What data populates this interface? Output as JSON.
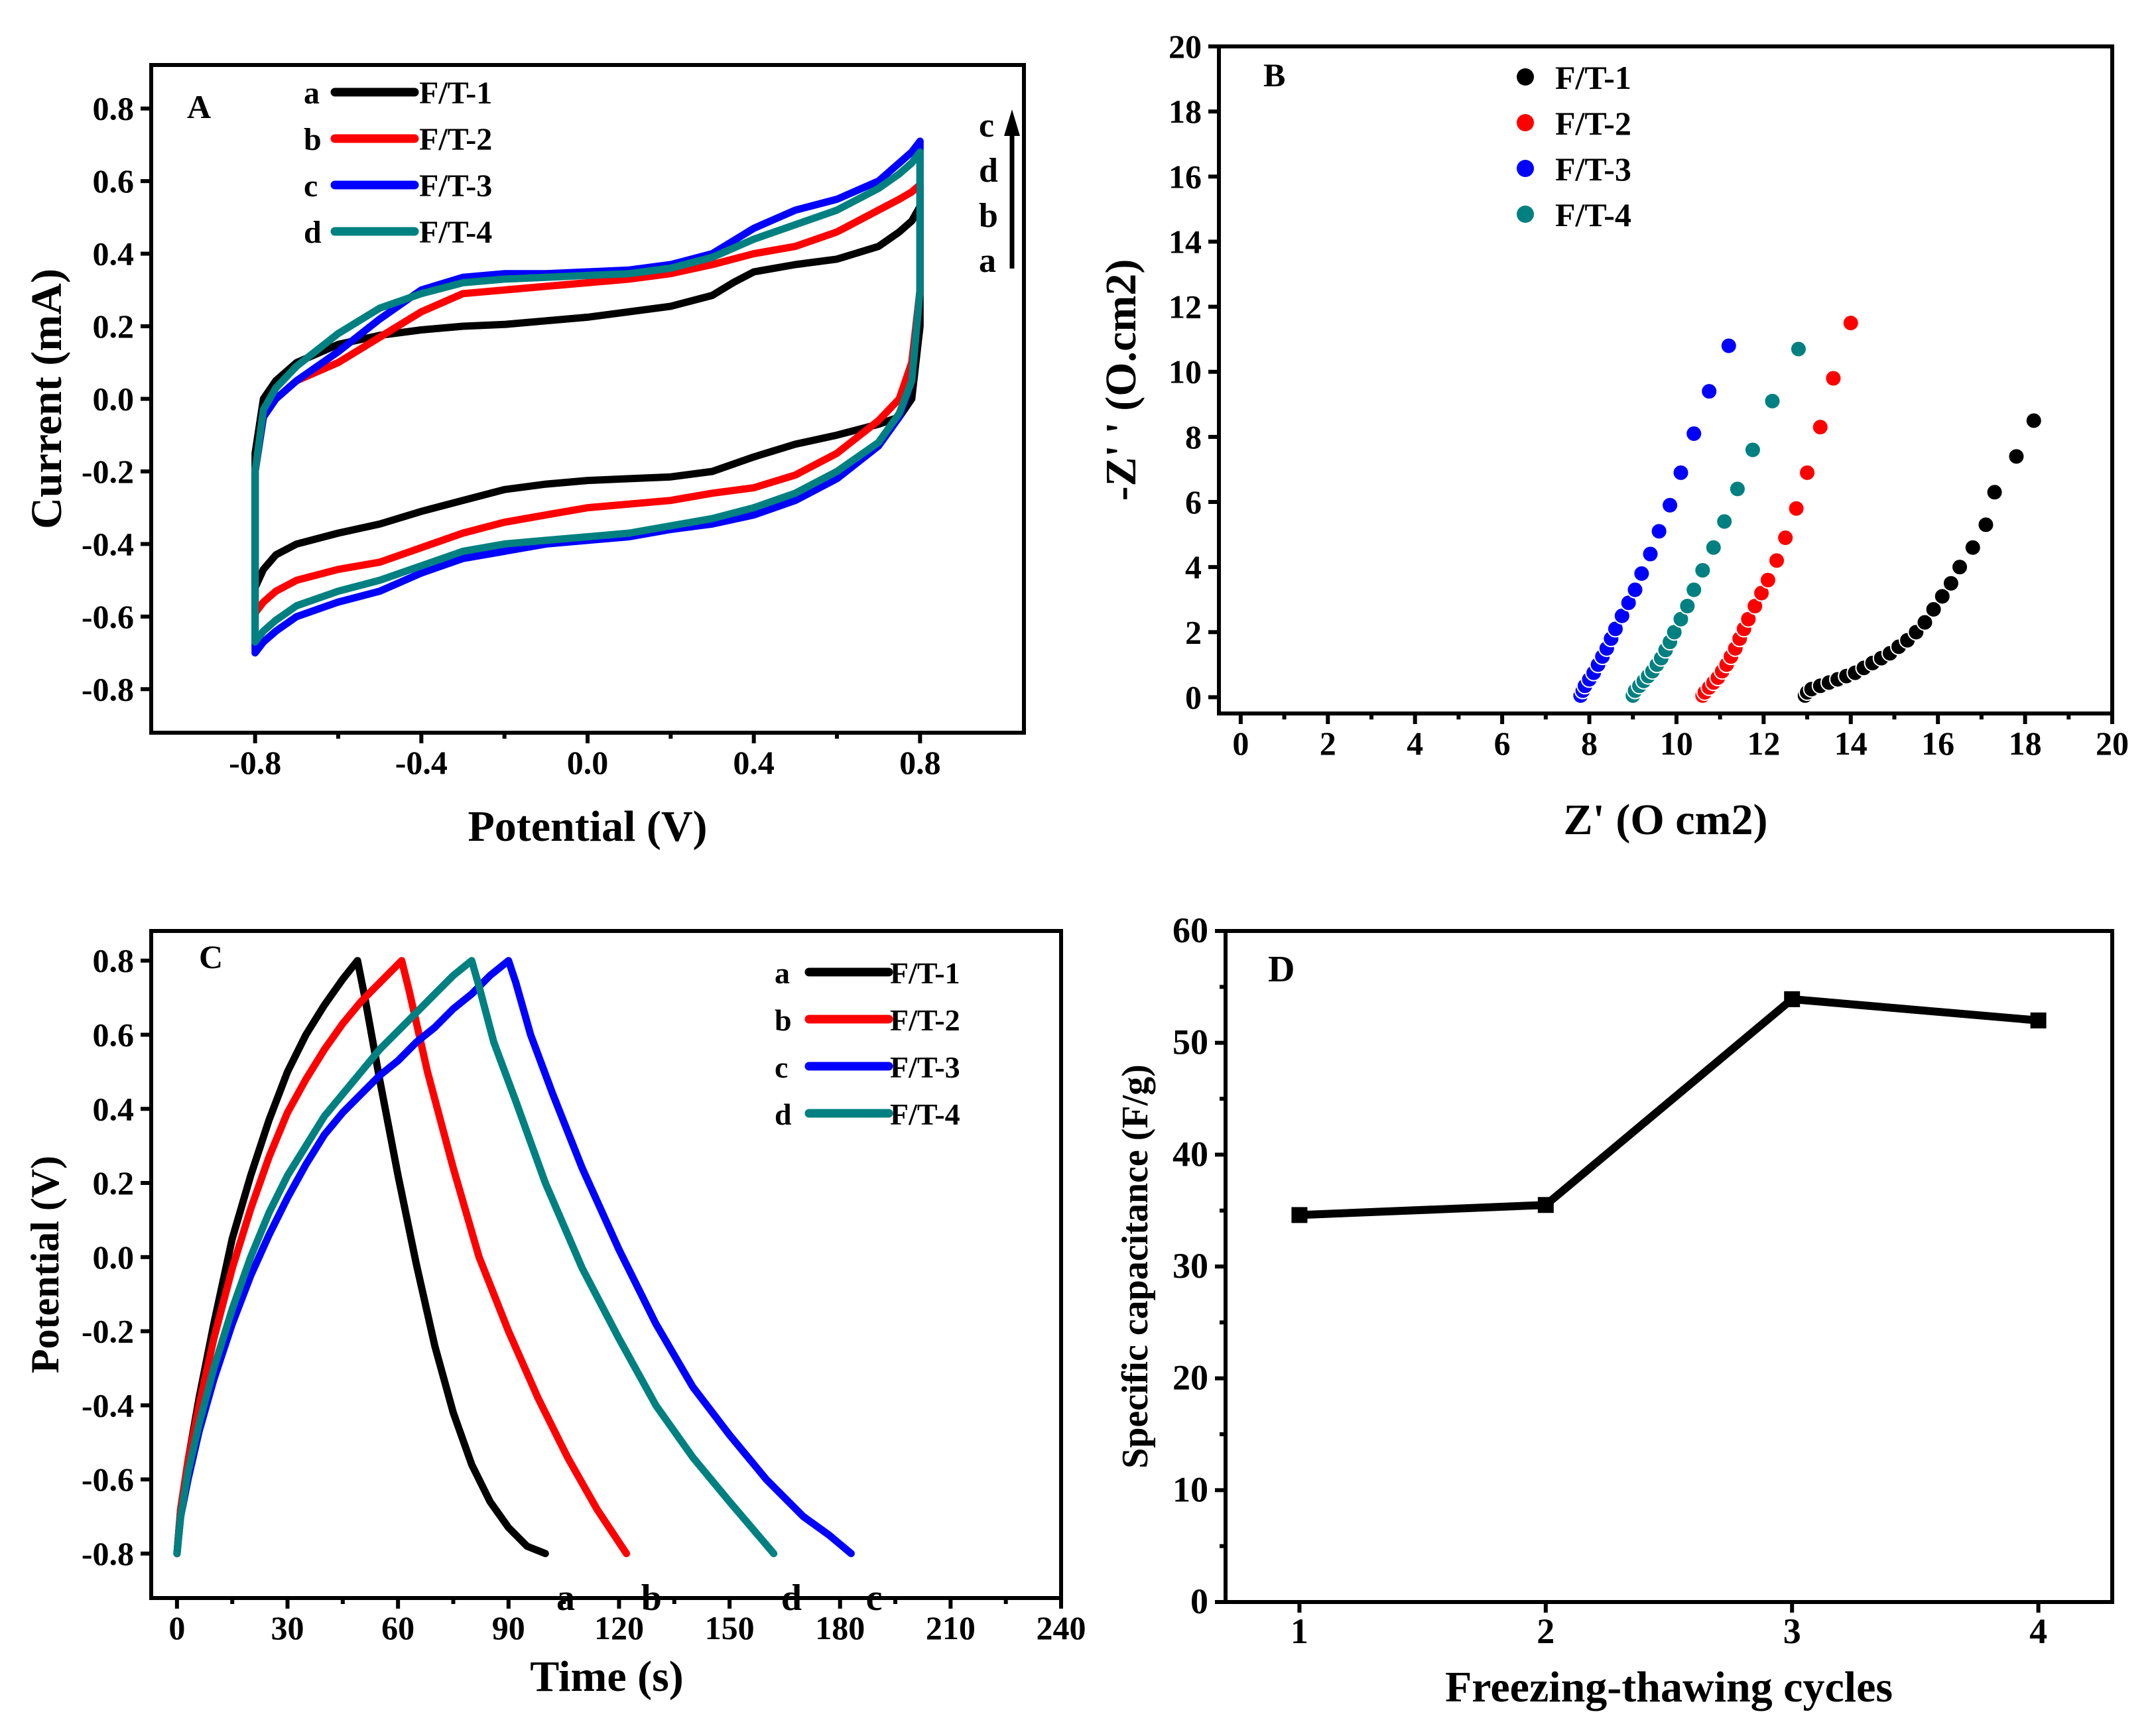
{
  "chart_data": [
    {
      "panel": "A",
      "type": "line",
      "title": "",
      "xlabel": "Potential (V)",
      "ylabel": "Current (mA)",
      "xlim": [
        -1.05,
        1.05
      ],
      "ylim": [
        -0.92,
        0.92
      ],
      "xticks": [
        -0.8,
        -0.4,
        0.0,
        0.4,
        0.8
      ],
      "xtick_labels": [
        "-0.8",
        "-0.4",
        "0.0",
        "0.4",
        "0.8"
      ],
      "yticks": [
        -0.8,
        -0.6,
        -0.4,
        -0.2,
        0.0,
        0.2,
        0.4,
        0.6,
        0.8
      ],
      "ytick_labels": [
        "-0.8",
        "-0.6",
        "-0.4",
        "-0.2",
        "0.0",
        "0.2",
        "0.4",
        "0.6",
        "0.8"
      ],
      "legend_position": "top-left",
      "arrow_labels": [
        "c",
        "d",
        "b",
        "a"
      ],
      "series": [
        {
          "letter": "a",
          "name": "F/T-1",
          "color": "#000000",
          "x": [
            -0.8,
            -0.78,
            -0.75,
            -0.7,
            -0.6,
            -0.5,
            -0.4,
            -0.3,
            -0.2,
            -0.1,
            0,
            0.1,
            0.2,
            0.3,
            0.35,
            0.4,
            0.5,
            0.6,
            0.7,
            0.75,
            0.78,
            0.8,
            0.8,
            0.78,
            0.75,
            0.7,
            0.6,
            0.5,
            0.4,
            0.3,
            0.2,
            0.1,
            0,
            -0.1,
            -0.2,
            -0.3,
            -0.4,
            -0.5,
            -0.6,
            -0.7,
            -0.75,
            -0.78,
            -0.8,
            -0.8
          ],
          "y": [
            -0.15,
            0.0,
            0.05,
            0.1,
            0.15,
            0.175,
            0.19,
            0.2,
            0.205,
            0.215,
            0.225,
            0.24,
            0.255,
            0.285,
            0.32,
            0.35,
            0.37,
            0.385,
            0.42,
            0.46,
            0.49,
            0.53,
            0.2,
            0.0,
            -0.05,
            -0.07,
            -0.1,
            -0.125,
            -0.16,
            -0.2,
            -0.215,
            -0.22,
            -0.225,
            -0.235,
            -0.25,
            -0.28,
            -0.31,
            -0.345,
            -0.37,
            -0.4,
            -0.43,
            -0.47,
            -0.52,
            -0.15
          ]
        },
        {
          "letter": "b",
          "name": "F/T-2",
          "color": "#ff0000",
          "x": [
            -0.8,
            -0.78,
            -0.75,
            -0.7,
            -0.6,
            -0.5,
            -0.4,
            -0.3,
            -0.2,
            -0.1,
            0,
            0.1,
            0.2,
            0.3,
            0.4,
            0.5,
            0.6,
            0.7,
            0.75,
            0.78,
            0.8,
            0.8,
            0.78,
            0.75,
            0.7,
            0.6,
            0.5,
            0.4,
            0.3,
            0.2,
            0.1,
            0,
            -0.1,
            -0.2,
            -0.3,
            -0.4,
            -0.5,
            -0.6,
            -0.7,
            -0.75,
            -0.78,
            -0.8,
            -0.8
          ],
          "y": [
            -0.2,
            -0.05,
            0.0,
            0.05,
            0.1,
            0.17,
            0.24,
            0.29,
            0.3,
            0.31,
            0.32,
            0.33,
            0.345,
            0.37,
            0.4,
            0.42,
            0.46,
            0.52,
            0.55,
            0.57,
            0.59,
            0.3,
            0.1,
            0.0,
            -0.06,
            -0.15,
            -0.21,
            -0.245,
            -0.26,
            -0.28,
            -0.29,
            -0.3,
            -0.32,
            -0.34,
            -0.37,
            -0.41,
            -0.45,
            -0.47,
            -0.5,
            -0.53,
            -0.56,
            -0.59,
            -0.2
          ]
        },
        {
          "letter": "c",
          "name": "F/T-3",
          "color": "#0000ff",
          "x": [
            -0.8,
            -0.78,
            -0.75,
            -0.7,
            -0.6,
            -0.5,
            -0.4,
            -0.3,
            -0.2,
            -0.1,
            0,
            0.1,
            0.2,
            0.3,
            0.4,
            0.5,
            0.6,
            0.7,
            0.75,
            0.78,
            0.8,
            0.8,
            0.78,
            0.75,
            0.7,
            0.6,
            0.5,
            0.4,
            0.3,
            0.2,
            0.1,
            0,
            -0.1,
            -0.2,
            -0.3,
            -0.4,
            -0.5,
            -0.6,
            -0.7,
            -0.75,
            -0.78,
            -0.8,
            -0.8
          ],
          "y": [
            -0.2,
            -0.05,
            0.0,
            0.05,
            0.13,
            0.22,
            0.3,
            0.335,
            0.345,
            0.345,
            0.35,
            0.355,
            0.37,
            0.4,
            0.47,
            0.52,
            0.55,
            0.6,
            0.65,
            0.68,
            0.71,
            0.3,
            0.05,
            -0.05,
            -0.13,
            -0.22,
            -0.28,
            -0.32,
            -0.345,
            -0.36,
            -0.38,
            -0.39,
            -0.4,
            -0.42,
            -0.44,
            -0.48,
            -0.53,
            -0.56,
            -0.6,
            -0.64,
            -0.67,
            -0.7,
            -0.2
          ]
        },
        {
          "letter": "d",
          "name": "F/T-4",
          "color": "#008080",
          "x": [
            -0.8,
            -0.78,
            -0.75,
            -0.7,
            -0.6,
            -0.5,
            -0.4,
            -0.3,
            -0.2,
            -0.1,
            0,
            0.1,
            0.2,
            0.3,
            0.4,
            0.5,
            0.6,
            0.7,
            0.75,
            0.78,
            0.8,
            0.8,
            0.78,
            0.75,
            0.7,
            0.6,
            0.5,
            0.4,
            0.3,
            0.2,
            0.1,
            0,
            -0.1,
            -0.2,
            -0.3,
            -0.4,
            -0.5,
            -0.6,
            -0.7,
            -0.75,
            -0.78,
            -0.8,
            -0.8
          ],
          "y": [
            -0.2,
            -0.03,
            0.03,
            0.09,
            0.18,
            0.25,
            0.29,
            0.32,
            0.33,
            0.335,
            0.34,
            0.345,
            0.36,
            0.39,
            0.44,
            0.48,
            0.52,
            0.58,
            0.62,
            0.65,
            0.68,
            0.3,
            0.05,
            -0.04,
            -0.12,
            -0.2,
            -0.26,
            -0.3,
            -0.33,
            -0.35,
            -0.37,
            -0.38,
            -0.39,
            -0.4,
            -0.42,
            -0.46,
            -0.5,
            -0.53,
            -0.57,
            -0.61,
            -0.64,
            -0.67,
            -0.2
          ]
        }
      ]
    },
    {
      "panel": "B",
      "type": "scatter",
      "title": "",
      "xlabel": "Z'   (O   cm2)",
      "ylabel": "-Z' '   (O.cm2)",
      "xlim": [
        -0.5,
        20
      ],
      "ylim": [
        -0.5,
        20
      ],
      "xticks": [
        0,
        2,
        4,
        6,
        8,
        10,
        12,
        14,
        16,
        18,
        20
      ],
      "xtick_labels": [
        "0",
        "2",
        "4",
        "6",
        "8",
        "10",
        "12",
        "14",
        "16",
        "18",
        "20"
      ],
      "yticks": [
        0,
        2,
        4,
        6,
        8,
        10,
        12,
        14,
        16,
        18,
        20
      ],
      "ytick_labels": [
        "0",
        "2",
        "4",
        "6",
        "8",
        "10",
        "12",
        "14",
        "16",
        "18",
        "20"
      ],
      "legend_position": "top-center",
      "series": [
        {
          "name": "F/T-1",
          "color": "#000000",
          "x": [
            12.95,
            13.0,
            13.1,
            13.3,
            13.5,
            13.7,
            13.9,
            14.1,
            14.3,
            14.5,
            14.7,
            14.9,
            15.1,
            15.3,
            15.5,
            15.7,
            15.9,
            16.1,
            16.3,
            16.5,
            16.8,
            17.1,
            17.3,
            17.8,
            18.2
          ],
          "y": [
            0.05,
            0.15,
            0.25,
            0.35,
            0.45,
            0.55,
            0.65,
            0.75,
            0.9,
            1.05,
            1.2,
            1.35,
            1.55,
            1.75,
            2.0,
            2.3,
            2.7,
            3.1,
            3.5,
            4.0,
            4.6,
            5.3,
            6.3,
            7.4,
            8.5
          ]
        },
        {
          "name": "F/T-2",
          "color": "#ff0000",
          "x": [
            10.6,
            10.65,
            10.75,
            10.85,
            10.95,
            11.05,
            11.15,
            11.25,
            11.35,
            11.45,
            11.55,
            11.65,
            11.8,
            11.95,
            12.1,
            12.3,
            12.5,
            12.75,
            13.0,
            13.3,
            13.6,
            14.0
          ],
          "y": [
            0.05,
            0.15,
            0.3,
            0.45,
            0.6,
            0.8,
            1.0,
            1.25,
            1.5,
            1.8,
            2.1,
            2.4,
            2.8,
            3.2,
            3.6,
            4.2,
            4.9,
            5.8,
            6.9,
            8.3,
            9.8,
            11.5
          ]
        },
        {
          "name": "F/T-3",
          "color": "#0000ff",
          "x": [
            7.8,
            7.85,
            7.9,
            8.0,
            8.1,
            8.2,
            8.3,
            8.4,
            8.5,
            8.6,
            8.75,
            8.9,
            9.05,
            9.2,
            9.4,
            9.6,
            9.85,
            10.1,
            10.4,
            10.75,
            11.2
          ],
          "y": [
            0.05,
            0.2,
            0.35,
            0.55,
            0.75,
            1.0,
            1.25,
            1.5,
            1.8,
            2.1,
            2.5,
            2.9,
            3.3,
            3.8,
            4.4,
            5.1,
            5.9,
            6.9,
            8.1,
            9.4,
            10.8
          ]
        },
        {
          "name": "F/T-4",
          "color": "#008080",
          "x": [
            9.0,
            9.05,
            9.15,
            9.25,
            9.35,
            9.45,
            9.55,
            9.65,
            9.75,
            9.85,
            9.95,
            10.1,
            10.25,
            10.4,
            10.6,
            10.85,
            11.1,
            11.4,
            11.75,
            12.2,
            12.8
          ],
          "y": [
            0.05,
            0.2,
            0.35,
            0.5,
            0.65,
            0.8,
            1.0,
            1.2,
            1.45,
            1.7,
            2.0,
            2.4,
            2.8,
            3.3,
            3.9,
            4.6,
            5.4,
            6.4,
            7.6,
            9.1,
            10.7
          ]
        }
      ]
    },
    {
      "panel": "C",
      "type": "line",
      "title": "",
      "xlabel": "Time (s)",
      "ylabel": "Potential (V)",
      "xlim": [
        -7,
        240
      ],
      "ylim": [
        -0.92,
        0.88
      ],
      "xticks": [
        0,
        30,
        60,
        90,
        120,
        150,
        180,
        210,
        240
      ],
      "xtick_labels": [
        "0",
        "30",
        "60",
        "90",
        "120",
        "150",
        "180",
        "210",
        "240"
      ],
      "yticks": [
        -0.8,
        -0.6,
        -0.4,
        -0.2,
        0.0,
        0.2,
        0.4,
        0.6,
        0.8
      ],
      "ytick_labels": [
        "-0.8",
        "-0.6",
        "-0.4",
        "-0.2",
        "0.0",
        "0.2",
        "0.4",
        "0.6",
        "0.8"
      ],
      "legend_position": "top-right",
      "series": [
        {
          "letter": "a",
          "name": "F/T-1",
          "color": "#000000",
          "x": [
            0,
            1,
            3,
            6,
            10,
            15,
            20,
            25,
            30,
            35,
            40,
            45,
            49,
            51,
            55,
            60,
            65,
            70,
            75,
            80,
            85,
            90,
            95,
            100
          ],
          "y": [
            -0.8,
            -0.68,
            -0.55,
            -0.38,
            -0.18,
            0.05,
            0.22,
            0.37,
            0.5,
            0.6,
            0.68,
            0.75,
            0.8,
            0.7,
            0.48,
            0.22,
            -0.02,
            -0.24,
            -0.42,
            -0.56,
            -0.66,
            -0.73,
            -0.78,
            -0.8
          ]
        },
        {
          "letter": "b",
          "name": "F/T-2",
          "color": "#ff0000",
          "x": [
            0,
            1,
            3,
            6,
            10,
            15,
            20,
            25,
            30,
            35,
            40,
            45,
            50,
            55,
            61,
            63,
            68,
            75,
            82,
            90,
            98,
            106,
            114,
            122
          ],
          "y": [
            -0.8,
            -0.68,
            -0.55,
            -0.4,
            -0.22,
            -0.03,
            0.13,
            0.27,
            0.39,
            0.48,
            0.56,
            0.63,
            0.69,
            0.74,
            0.8,
            0.72,
            0.5,
            0.24,
            0.0,
            -0.2,
            -0.38,
            -0.54,
            -0.68,
            -0.8
          ]
        },
        {
          "letter": "c",
          "name": "F/T-3",
          "color": "#0000ff",
          "x": [
            0,
            1,
            3,
            6,
            10,
            15,
            20,
            25,
            30,
            35,
            40,
            45,
            50,
            55,
            60,
            65,
            70,
            75,
            80,
            85,
            90,
            92,
            96,
            102,
            110,
            120,
            130,
            140,
            150,
            160,
            170,
            177,
            183
          ],
          "y": [
            -0.8,
            -0.7,
            -0.6,
            -0.47,
            -0.33,
            -0.18,
            -0.05,
            0.06,
            0.16,
            0.25,
            0.33,
            0.39,
            0.44,
            0.49,
            0.53,
            0.58,
            0.62,
            0.67,
            0.71,
            0.76,
            0.8,
            0.74,
            0.6,
            0.44,
            0.24,
            0.02,
            -0.18,
            -0.35,
            -0.48,
            -0.6,
            -0.7,
            -0.75,
            -0.8
          ]
        },
        {
          "letter": "d",
          "name": "F/T-4",
          "color": "#008080",
          "x": [
            0,
            1,
            3,
            6,
            10,
            15,
            20,
            25,
            30,
            35,
            40,
            45,
            50,
            55,
            60,
            65,
            70,
            75,
            80,
            82,
            86,
            92,
            100,
            110,
            120,
            130,
            140,
            150,
            162
          ],
          "y": [
            -0.8,
            -0.7,
            -0.58,
            -0.45,
            -0.3,
            -0.14,
            0.0,
            0.12,
            0.22,
            0.3,
            0.38,
            0.44,
            0.5,
            0.56,
            0.61,
            0.66,
            0.71,
            0.76,
            0.8,
            0.73,
            0.58,
            0.42,
            0.2,
            -0.03,
            -0.22,
            -0.4,
            -0.54,
            -0.66,
            -0.8
          ]
        }
      ]
    },
    {
      "panel": "D",
      "type": "line",
      "title": "",
      "xlabel": "Freezing-thawing cycles",
      "ylabel": "Specific capacitance (F/g)",
      "xlim": [
        0.7,
        4.3
      ],
      "ylim": [
        0,
        60
      ],
      "xticks": [
        1,
        2,
        3,
        4
      ],
      "xtick_labels": [
        "1",
        "2",
        "3",
        "4"
      ],
      "yticks": [
        0,
        10,
        20,
        30,
        40,
        50,
        60
      ],
      "ytick_labels": [
        "0",
        "10",
        "20",
        "30",
        "40",
        "50",
        "60"
      ],
      "series": [
        {
          "name": "Specific capacitance",
          "color": "#000000",
          "x": [
            1,
            2,
            3,
            4
          ],
          "y": [
            34.6,
            35.5,
            53.9,
            52.0
          ]
        }
      ]
    }
  ],
  "panels": {
    "A": {
      "label": "A",
      "legend": [
        {
          "letter": "a",
          "name": "F/T-1"
        },
        {
          "letter": "b",
          "name": "F/T-2"
        },
        {
          "letter": "c",
          "name": "F/T-3"
        },
        {
          "letter": "d",
          "name": "F/T-4"
        }
      ]
    },
    "B": {
      "label": "B",
      "legend": [
        "F/T-1",
        "F/T-2",
        "F/T-3",
        "F/T-4"
      ]
    },
    "C": {
      "label": "C",
      "legend": [
        {
          "letter": "a",
          "name": "F/T-1"
        },
        {
          "letter": "b",
          "name": "F/T-2"
        },
        {
          "letter": "c",
          "name": "F/T-3"
        },
        {
          "letter": "d",
          "name": "F/T-4"
        }
      ],
      "end_labels": [
        "a",
        "b",
        "d",
        "c"
      ]
    },
    "D": {
      "label": "D"
    }
  }
}
